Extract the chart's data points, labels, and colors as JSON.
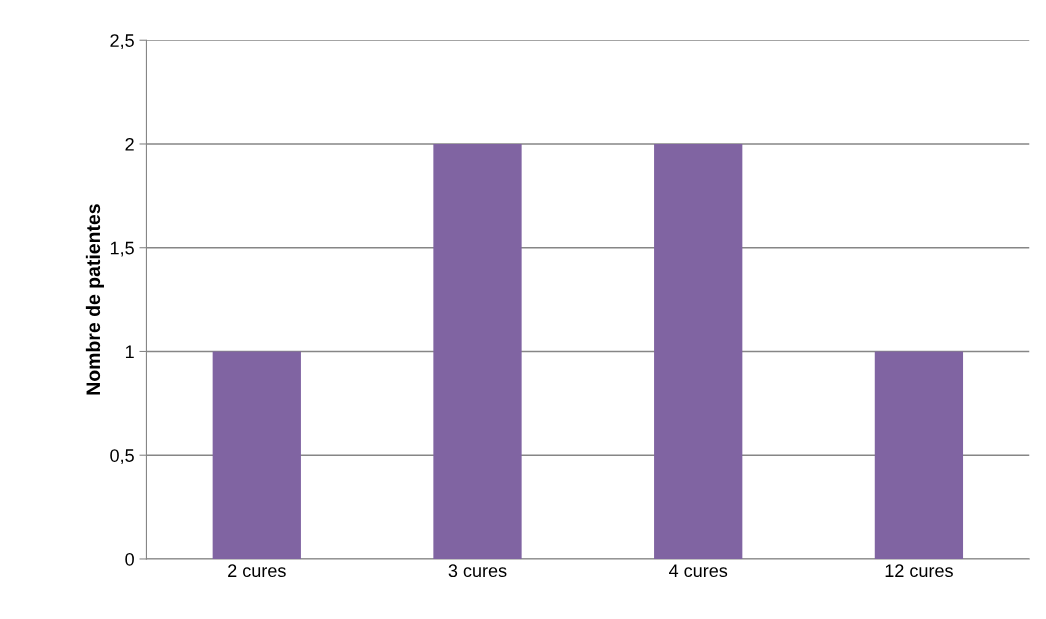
{
  "chart_data": {
    "type": "bar",
    "ylabel": "Nombre de patientes",
    "categories": [
      "2 cures",
      "3 cures",
      "4 cures",
      "12 cures"
    ],
    "values": [
      1,
      2,
      2,
      1
    ],
    "color": "#8064a2",
    "ylim": [
      0,
      2.5
    ],
    "yticks": [
      0,
      {
        "value": 0.5,
        "label": "0,5"
      },
      1,
      {
        "value": 1.5,
        "label": "1,5"
      },
      2,
      {
        "value": 2.5,
        "label": "2,5"
      }
    ],
    "grid": "y",
    "legend": false
  }
}
